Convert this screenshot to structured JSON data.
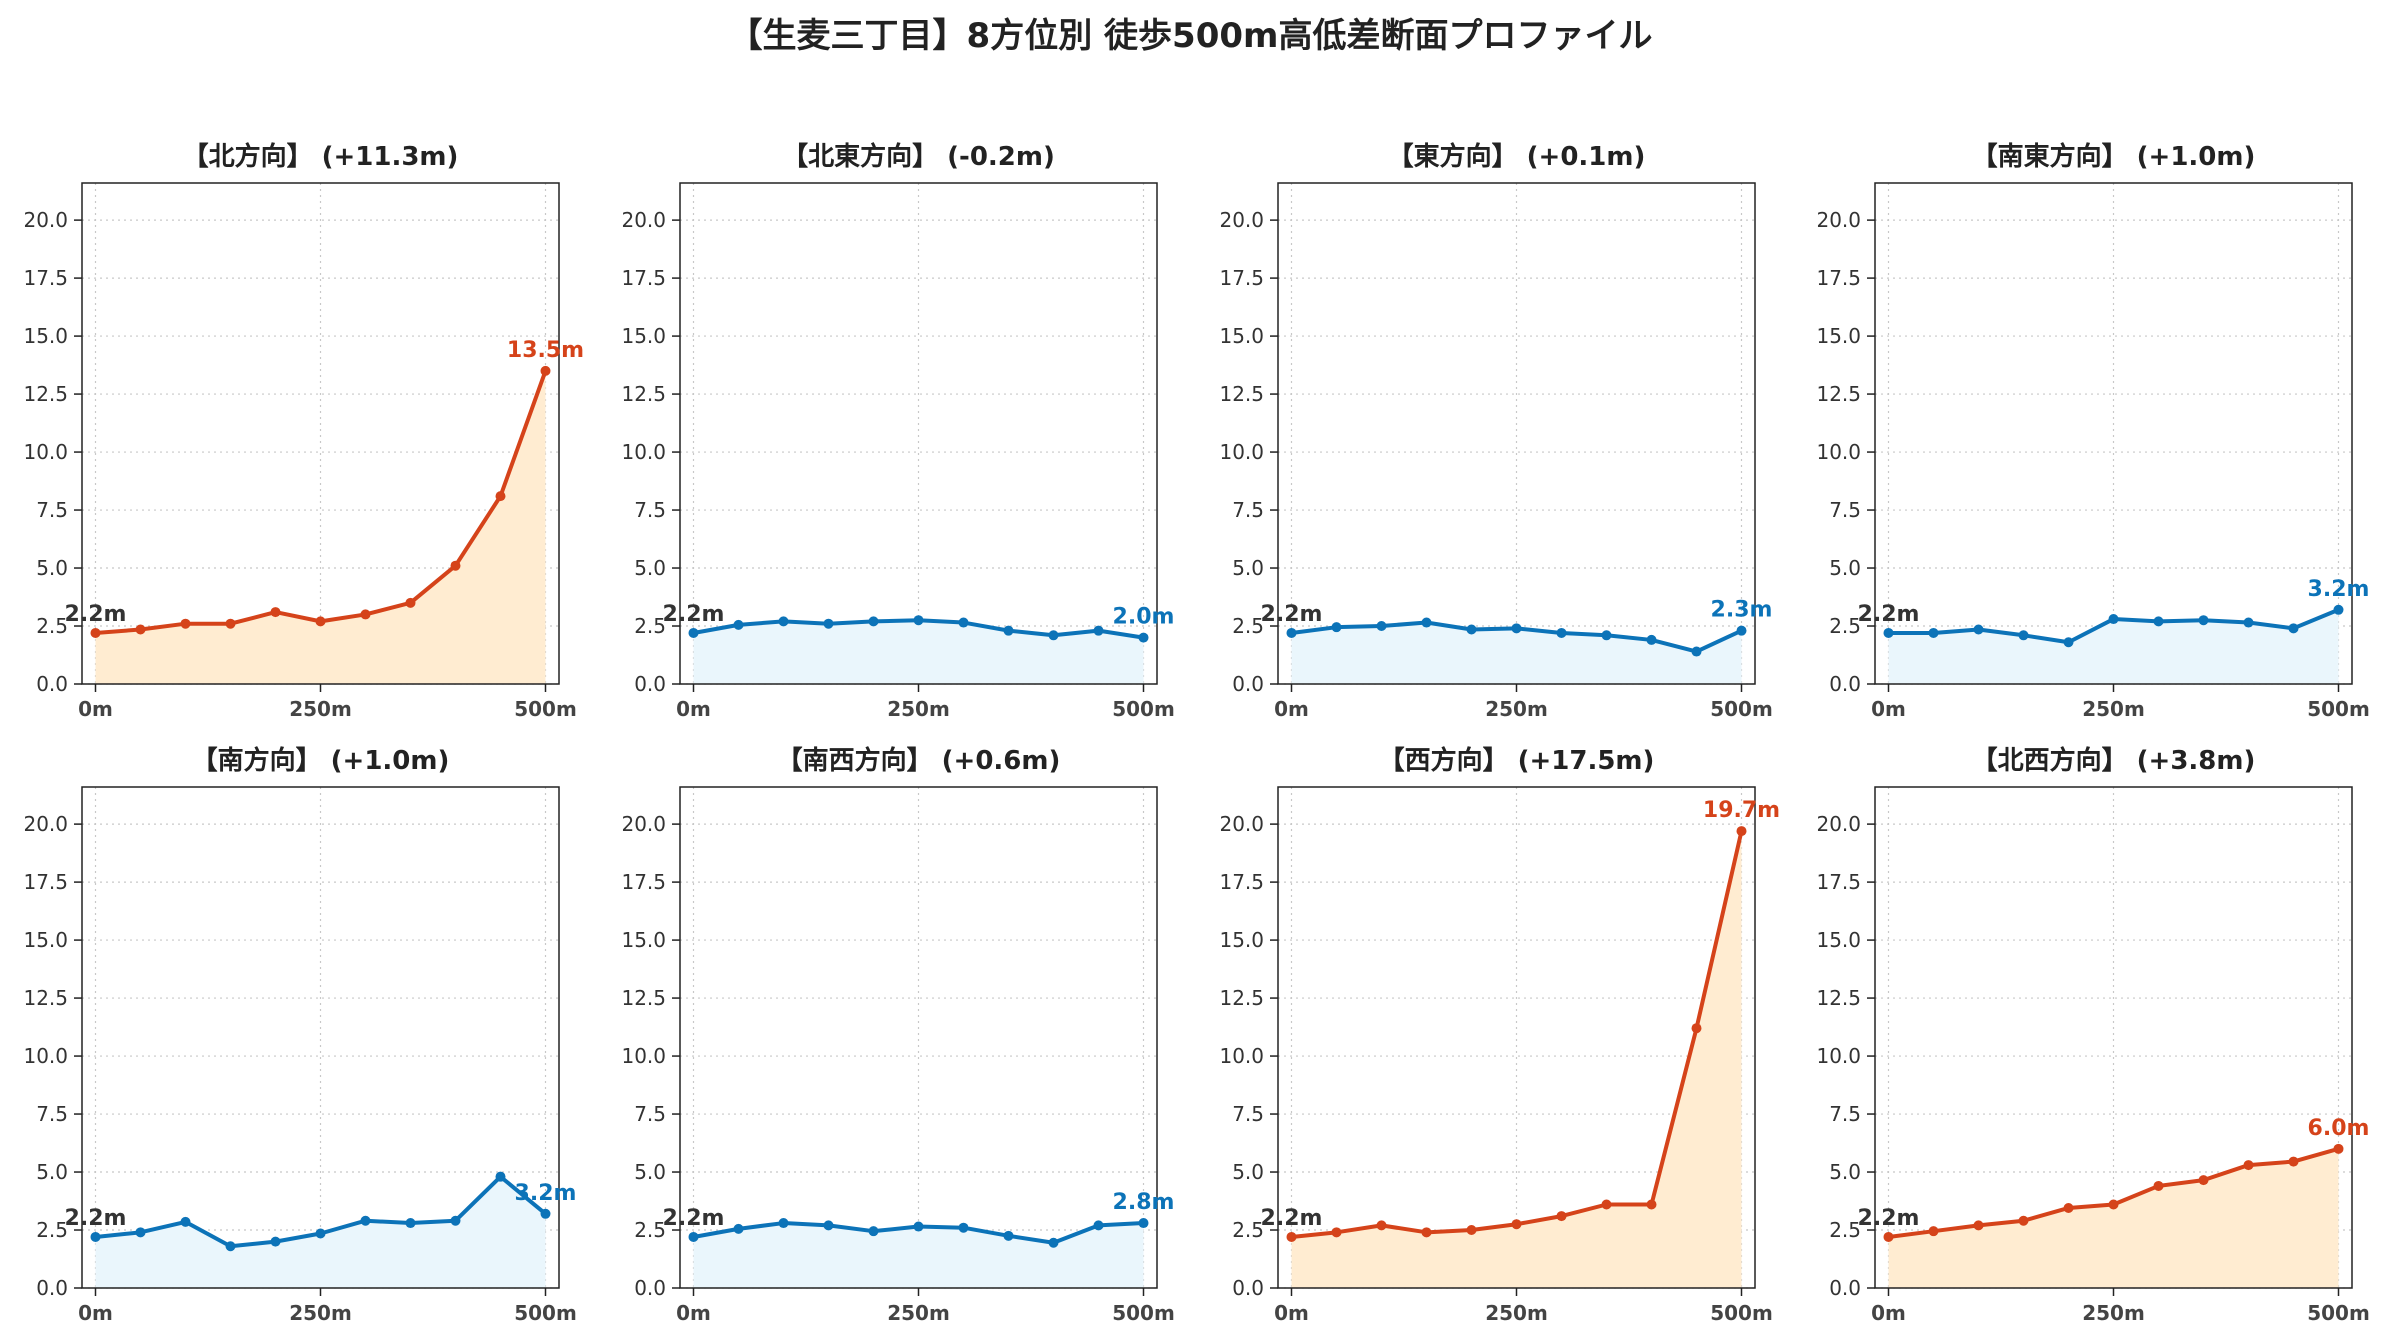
{
  "suptitle": "【生麦三丁目】8方位別 徒歩500m高低差断面プロファイル",
  "colors": {
    "up_line": "#d5431a",
    "up_fill": "#ffecd1",
    "down_line": "#0c73b8",
    "down_fill": "#eaf6fc",
    "start_label": "#333333"
  },
  "chart_data": [
    {
      "type": "area",
      "title": "【北方向】 (+11.3m)",
      "trend": "up",
      "x": [
        0,
        50,
        100,
        150,
        200,
        250,
        300,
        350,
        400,
        450,
        500
      ],
      "y": [
        2.2,
        2.35,
        2.6,
        2.6,
        3.1,
        2.7,
        3.0,
        3.5,
        5.1,
        8.1,
        13.5
      ],
      "start_label": "2.2m",
      "end_label": "13.5m",
      "ylim": [
        0,
        21.6
      ],
      "yticks": [
        "0.0",
        "2.5",
        "5.0",
        "7.5",
        "10.0",
        "12.5",
        "15.0",
        "17.5",
        "20.0"
      ],
      "xticks": [
        "0m",
        "250m",
        "500m"
      ],
      "grid": true
    },
    {
      "type": "area",
      "title": "【北東方向】 (-0.2m)",
      "trend": "down",
      "x": [
        0,
        50,
        100,
        150,
        200,
        250,
        300,
        350,
        400,
        450,
        500
      ],
      "y": [
        2.2,
        2.55,
        2.7,
        2.6,
        2.7,
        2.75,
        2.65,
        2.3,
        2.1,
        2.3,
        2.0
      ],
      "start_label": "2.2m",
      "end_label": "2.0m",
      "ylim": [
        0,
        21.6
      ],
      "yticks": [
        "0.0",
        "2.5",
        "5.0",
        "7.5",
        "10.0",
        "12.5",
        "15.0",
        "17.5",
        "20.0"
      ],
      "xticks": [
        "0m",
        "250m",
        "500m"
      ],
      "grid": true
    },
    {
      "type": "area",
      "title": "【東方向】 (+0.1m)",
      "trend": "down",
      "x": [
        0,
        50,
        100,
        150,
        200,
        250,
        300,
        350,
        400,
        450,
        500
      ],
      "y": [
        2.2,
        2.45,
        2.5,
        2.65,
        2.35,
        2.4,
        2.2,
        2.1,
        1.9,
        1.4,
        2.3
      ],
      "start_label": "2.2m",
      "end_label": "2.3m",
      "ylim": [
        0,
        21.6
      ],
      "yticks": [
        "0.0",
        "2.5",
        "5.0",
        "7.5",
        "10.0",
        "12.5",
        "15.0",
        "17.5",
        "20.0"
      ],
      "xticks": [
        "0m",
        "250m",
        "500m"
      ],
      "grid": true
    },
    {
      "type": "area",
      "title": "【南東方向】 (+1.0m)",
      "trend": "down",
      "x": [
        0,
        50,
        100,
        150,
        200,
        250,
        300,
        350,
        400,
        450,
        500
      ],
      "y": [
        2.2,
        2.2,
        2.35,
        2.1,
        1.8,
        2.8,
        2.7,
        2.75,
        2.65,
        2.4,
        3.2
      ],
      "start_label": "2.2m",
      "end_label": "3.2m",
      "ylim": [
        0,
        21.6
      ],
      "yticks": [
        "0.0",
        "2.5",
        "5.0",
        "7.5",
        "10.0",
        "12.5",
        "15.0",
        "17.5",
        "20.0"
      ],
      "xticks": [
        "0m",
        "250m",
        "500m"
      ],
      "grid": true
    },
    {
      "type": "area",
      "title": "【南方向】 (+1.0m)",
      "trend": "down",
      "x": [
        0,
        50,
        100,
        150,
        200,
        250,
        300,
        350,
        400,
        450,
        500
      ],
      "y": [
        2.2,
        2.4,
        2.85,
        1.8,
        2.0,
        2.35,
        2.9,
        2.8,
        2.9,
        4.8,
        3.2
      ],
      "start_label": "2.2m",
      "end_label": "3.2m",
      "ylim": [
        0,
        21.6
      ],
      "yticks": [
        "0.0",
        "2.5",
        "5.0",
        "7.5",
        "10.0",
        "12.5",
        "15.0",
        "17.5",
        "20.0"
      ],
      "xticks": [
        "0m",
        "250m",
        "500m"
      ],
      "grid": true
    },
    {
      "type": "area",
      "title": "【南西方向】 (+0.6m)",
      "trend": "down",
      "x": [
        0,
        50,
        100,
        150,
        200,
        250,
        300,
        350,
        400,
        450,
        500
      ],
      "y": [
        2.2,
        2.55,
        2.8,
        2.7,
        2.45,
        2.65,
        2.6,
        2.25,
        1.95,
        2.7,
        2.8
      ],
      "start_label": "2.2m",
      "end_label": "2.8m",
      "ylim": [
        0,
        21.6
      ],
      "yticks": [
        "0.0",
        "2.5",
        "5.0",
        "7.5",
        "10.0",
        "12.5",
        "15.0",
        "17.5",
        "20.0"
      ],
      "xticks": [
        "0m",
        "250m",
        "500m"
      ],
      "grid": true
    },
    {
      "type": "area",
      "title": "【西方向】 (+17.5m)",
      "trend": "up",
      "x": [
        0,
        50,
        100,
        150,
        200,
        250,
        300,
        350,
        400,
        450,
        500
      ],
      "y": [
        2.2,
        2.4,
        2.7,
        2.4,
        2.5,
        2.75,
        3.1,
        3.6,
        3.6,
        11.2,
        19.7
      ],
      "start_label": "2.2m",
      "end_label": "19.7m",
      "ylim": [
        0,
        21.6
      ],
      "yticks": [
        "0.0",
        "2.5",
        "5.0",
        "7.5",
        "10.0",
        "12.5",
        "15.0",
        "17.5",
        "20.0"
      ],
      "xticks": [
        "0m",
        "250m",
        "500m"
      ],
      "grid": true
    },
    {
      "type": "area",
      "title": "【北西方向】 (+3.8m)",
      "trend": "up",
      "x": [
        0,
        50,
        100,
        150,
        200,
        250,
        300,
        350,
        400,
        450,
        500
      ],
      "y": [
        2.2,
        2.45,
        2.7,
        2.9,
        3.45,
        3.6,
        4.4,
        4.65,
        5.3,
        5.45,
        6.0
      ],
      "start_label": "2.2m",
      "end_label": "6.0m",
      "ylim": [
        0,
        21.6
      ],
      "yticks": [
        "0.0",
        "2.5",
        "5.0",
        "7.5",
        "10.0",
        "12.5",
        "15.0",
        "17.5",
        "20.0"
      ],
      "xticks": [
        "0m",
        "250m",
        "500m"
      ],
      "grid": true
    }
  ]
}
